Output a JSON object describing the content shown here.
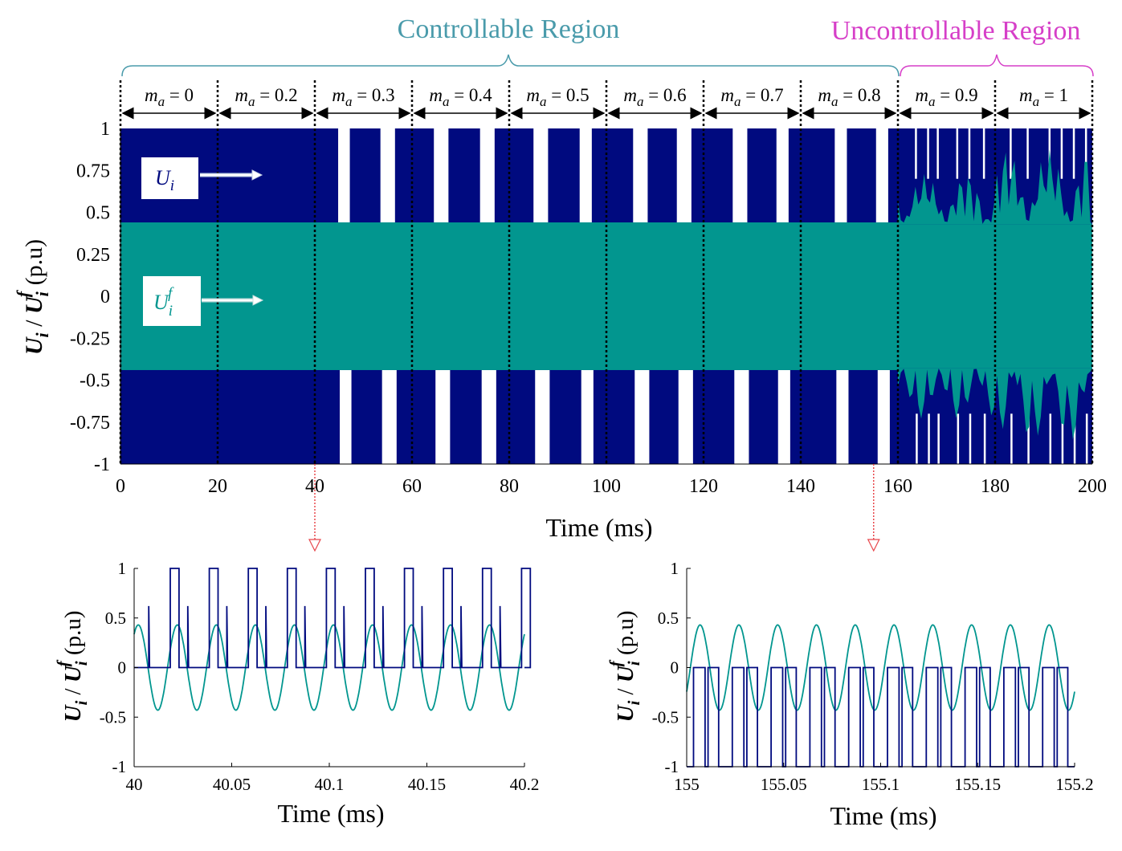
{
  "colors": {
    "ui": "#000a7f",
    "uif": "#02968f",
    "controllable": "#4a9bab",
    "uncontrollable": "#d63fc8",
    "marker": "#e8484d"
  },
  "regions": {
    "controllable_label": "Controllable Region",
    "uncontrollable_label": "Uncontrollable Region"
  },
  "legend": {
    "ui_label": "U",
    "ui_sub": "i",
    "uif_label": "U",
    "uif_sub": "i",
    "uif_sup": "f"
  },
  "ma_labels": [
    {
      "m": "m",
      "a": "a",
      "rest": " = 0"
    },
    {
      "m": "m",
      "a": "a",
      "rest": " = 0.2"
    },
    {
      "m": "m",
      "a": "a",
      "rest": " = 0.3"
    },
    {
      "m": "m",
      "a": "a",
      "rest": " = 0.4"
    },
    {
      "m": "m",
      "a": "a",
      "rest": " = 0.5"
    },
    {
      "m": "m",
      "a": "a",
      "rest": " = 0.6"
    },
    {
      "m": "m",
      "a": "a",
      "rest": " = 0.7"
    },
    {
      "m": "m",
      "a": "a",
      "rest": " = 0.8"
    },
    {
      "m": "m",
      "a": "a",
      "rest": " = 0.9"
    },
    {
      "m": "m",
      "a": "a",
      "rest": " = 1"
    }
  ],
  "chart_data": [
    {
      "type": "line",
      "xlabel": "Time (ms)",
      "ylabel": "U_i / U_i^f (p.u)",
      "xlim": [
        0,
        200
      ],
      "ylim": [
        -1,
        1
      ],
      "xticks": [
        "0",
        "20",
        "40",
        "60",
        "80",
        "100",
        "120",
        "140",
        "160",
        "180",
        "200"
      ],
      "yticks": [
        "1",
        "0.75",
        "0.5",
        "0.25",
        "0",
        "-0.25",
        "-0.5",
        "-0.75",
        "-1"
      ],
      "segment_boundaries_ms": [
        0,
        20,
        40,
        60,
        80,
        100,
        120,
        140,
        160,
        180,
        200
      ],
      "modulation_index": [
        0,
        0.2,
        0.3,
        0.4,
        0.5,
        0.6,
        0.7,
        0.8,
        0.9,
        1
      ],
      "series": [
        {
          "name": "U_i",
          "values_range": [
            -1,
            1
          ]
        },
        {
          "name": "U_i^f",
          "amplitude_pu": 0.44
        }
      ]
    },
    {
      "type": "line",
      "xlabel": "Time (ms)",
      "ylabel": "U_i / U_i^f (p.u)",
      "xlim": [
        40,
        40.2
      ],
      "ylim": [
        -1,
        1
      ],
      "xticks": [
        "40",
        "40.05",
        "40.1",
        "40.15",
        "40.2"
      ],
      "yticks": [
        "1",
        "0.5",
        "0",
        "-0.5",
        "-1"
      ],
      "series": [
        {
          "name": "U_i",
          "levels": [
            0,
            1
          ],
          "period_ms": 0.02
        },
        {
          "name": "U_i^f",
          "amplitude_pu": 0.43,
          "period_ms": 0.02
        }
      ]
    },
    {
      "type": "line",
      "xlabel": "Time (ms)",
      "ylabel": "U_i / U_i^f (p.u)",
      "xlim": [
        155,
        155.2
      ],
      "ylim": [
        -1,
        1
      ],
      "xticks": [
        "155",
        "155.05",
        "155.1",
        "155.15",
        "155.2"
      ],
      "yticks": [
        "1",
        "0.5",
        "0",
        "-0.5",
        "-1"
      ],
      "series": [
        {
          "name": "U_i",
          "levels": [
            -1,
            0
          ],
          "period_ms": 0.02
        },
        {
          "name": "U_i^f",
          "amplitude_pu": 0.43,
          "period_ms": 0.02
        }
      ]
    }
  ]
}
